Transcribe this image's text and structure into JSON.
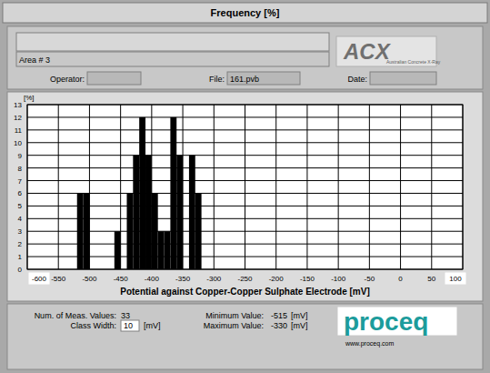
{
  "chart_data": {
    "type": "histogram",
    "title": "Frequency [%]",
    "y_label": "[%]",
    "x_label": "Potential against Copper-Copper Sulphate Electrode [mV]",
    "bins": [
      -520,
      -510,
      -500,
      -490,
      -480,
      -470,
      -460,
      -450,
      -440,
      -430,
      -420,
      -410,
      -400,
      -390,
      -380,
      -370,
      -360,
      -350,
      -340,
      -330,
      -320
    ],
    "values": [
      6,
      6,
      0,
      0,
      0,
      0,
      3,
      0,
      6,
      9,
      12,
      9,
      6,
      3,
      3,
      12,
      9,
      0,
      9,
      6
    ],
    "color": "#000000",
    "xlim": [
      -600,
      100
    ],
    "ylim": [
      0,
      13
    ],
    "xticks": [
      -600,
      -550,
      -500,
      -450,
      -400,
      -350,
      -300,
      -250,
      -200,
      -150,
      -100,
      -50,
      0,
      50,
      100
    ],
    "yticks": [
      0,
      1,
      2,
      3,
      4,
      5,
      6,
      7,
      8,
      9,
      10,
      11,
      12,
      13
    ],
    "grid": true
  },
  "header": {
    "area": "Area # 3",
    "operator_label": "Operator:",
    "file_label": "File:",
    "file": "161.pvb",
    "date_label": "Date:",
    "logo": "ACX",
    "logo_caption": "Australian Concrete X-Ray"
  },
  "summary": {
    "count_label": "Num. of Meas. Values:",
    "count": 33,
    "class_width_label": "Class Width:",
    "class_width": 10,
    "unit": "[mV]",
    "min_label": "Minimum Value:",
    "min": -515,
    "max_label": "Maximum Value:",
    "max": -330
  },
  "footer": {
    "brand": "proceq",
    "url": "www.proceq.com"
  }
}
